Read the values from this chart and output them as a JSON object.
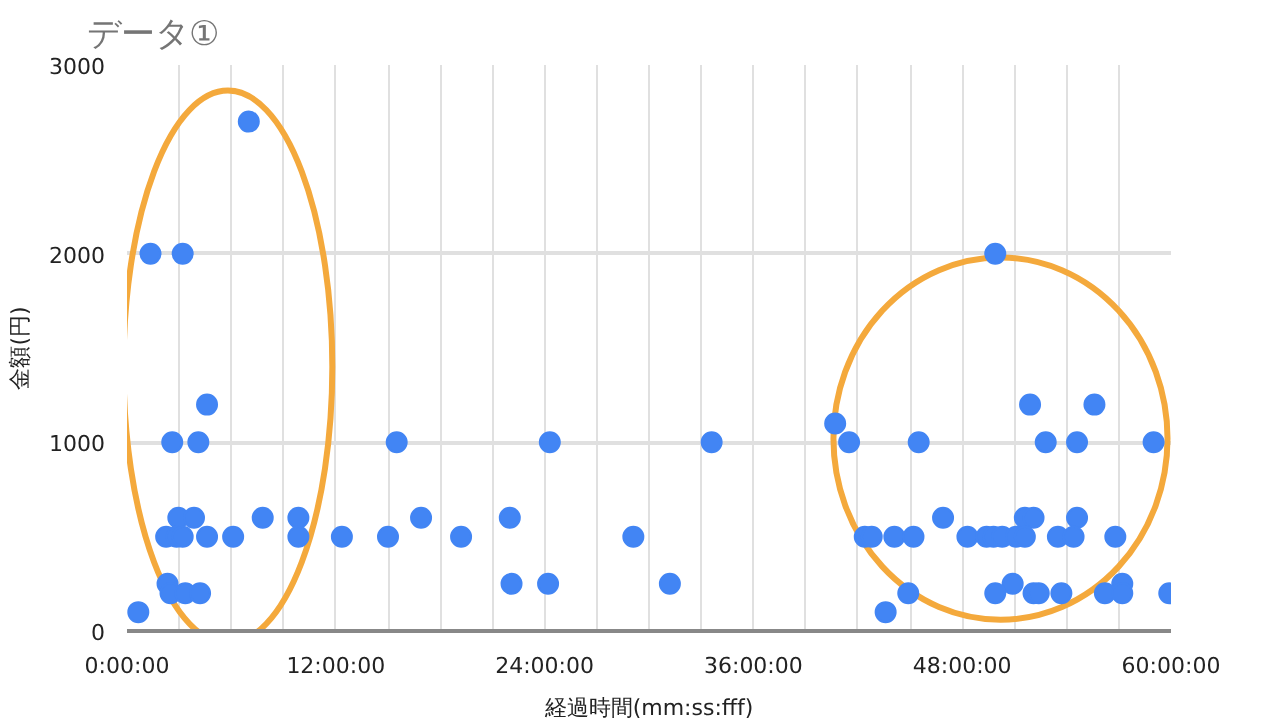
{
  "chart_data": {
    "type": "scatter",
    "title": "データ①",
    "xlabel": "経過時間(mm:ss:fff)",
    "ylabel": "金額(円)",
    "x": [
      0.65,
      1.35,
      3.2,
      7.0,
      2.6,
      4.1,
      4.6,
      2.95,
      3.85,
      7.8,
      9.85,
      16.9,
      2.25,
      2.85,
      3.2,
      4.6,
      6.1,
      9.85,
      12.35,
      15.0,
      19.2,
      2.33,
      2.5,
      3.35,
      4.2,
      15.5,
      24.3,
      33.6,
      22.0,
      29.1,
      22.1,
      24.2,
      31.2,
      40.7,
      41.5,
      45.5,
      49.9,
      51.9,
      55.6,
      52.8,
      54.6,
      59.0,
      46.9,
      51.6,
      52.1,
      54.6,
      42.4,
      42.8,
      44.1,
      45.2,
      48.3,
      49.4,
      49.8,
      50.3,
      51.1,
      51.6,
      53.5,
      54.4,
      56.8,
      50.9,
      57.2,
      44.9,
      49.9,
      52.1,
      52.4,
      53.7,
      56.2,
      57.2,
      59.9,
      43.6
    ],
    "series": [
      {
        "color": "#4285f4",
        "values": [
          100,
          2000,
          2000,
          2700,
          1000,
          1000,
          1200,
          600,
          600,
          600,
          600,
          600,
          500,
          500,
          500,
          500,
          500,
          500,
          500,
          500,
          500,
          250,
          200,
          200,
          200,
          1000,
          1000,
          1000,
          600,
          500,
          250,
          250,
          250,
          1100,
          1000,
          1000,
          2000,
          1200,
          1200,
          1000,
          1000,
          1000,
          600,
          600,
          600,
          600,
          500,
          500,
          500,
          500,
          500,
          500,
          500,
          500,
          500,
          500,
          500,
          500,
          500,
          250,
          250,
          200,
          200,
          200,
          200,
          200,
          200,
          200,
          200,
          100
        ]
      }
    ],
    "xlim": [
      0,
      60
    ],
    "xticks": [
      {
        "value": 0,
        "label": "0:00:00"
      },
      {
        "value": 3,
        "label": null
      },
      {
        "value": 6,
        "label": null
      },
      {
        "value": 9,
        "label": null
      },
      {
        "value": 12,
        "label": "12:00:00"
      },
      {
        "value": 15,
        "label": null
      },
      {
        "value": 18,
        "label": null
      },
      {
        "value": 21,
        "label": null
      },
      {
        "value": 24,
        "label": "24:00:00"
      },
      {
        "value": 27,
        "label": null
      },
      {
        "value": 30,
        "label": null
      },
      {
        "value": 33,
        "label": null
      },
      {
        "value": 36,
        "label": "36:00:00"
      },
      {
        "value": 39,
        "label": null
      },
      {
        "value": 42,
        "label": null
      },
      {
        "value": 45,
        "label": null
      },
      {
        "value": 48,
        "label": "48:00:00"
      },
      {
        "value": 51,
        "label": null
      },
      {
        "value": 54,
        "label": null
      },
      {
        "value": 57,
        "label": null
      },
      {
        "value": 60,
        "label": "60:00:00"
      }
    ],
    "ylim": [
      0,
      3000
    ],
    "yticks": [
      0,
      1000,
      2000,
      3000
    ],
    "grid": true,
    "marker": "circle"
  }
}
